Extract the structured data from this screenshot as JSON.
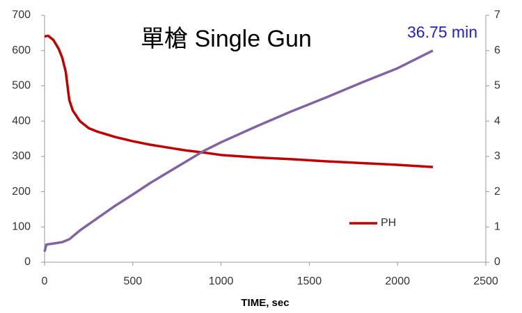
{
  "chart_data": {
    "type": "line",
    "title": "單槍 Single Gun",
    "annotation": "36.75 min",
    "annotation_color": "#1f1fcc",
    "xlabel": "TIME, sec",
    "xlim": [
      0,
      2500
    ],
    "xticks": [
      0,
      500,
      1000,
      1500,
      2000,
      2500
    ],
    "ylim": [
      0,
      700
    ],
    "yticks": [
      0,
      100,
      200,
      300,
      400,
      500,
      600,
      700
    ],
    "y2lim": [
      0,
      7
    ],
    "y2ticks": [
      0,
      1,
      2,
      3,
      4,
      5,
      6,
      7
    ],
    "grid": false,
    "legend": "lower right",
    "series": [
      {
        "name": "PH",
        "color": "#c00000",
        "axis": "y2",
        "x": [
          0,
          20,
          50,
          80,
          100,
          120,
          140,
          160,
          200,
          250,
          300,
          400,
          500,
          600,
          700,
          800,
          900,
          1000,
          1200,
          1400,
          1600,
          1800,
          2000,
          2200
        ],
        "values": [
          6.4,
          6.42,
          6.3,
          6.05,
          5.8,
          5.4,
          4.6,
          4.3,
          4.0,
          3.8,
          3.7,
          3.55,
          3.43,
          3.33,
          3.25,
          3.17,
          3.11,
          3.04,
          2.97,
          2.92,
          2.86,
          2.81,
          2.76,
          2.7
        ]
      },
      {
        "color": "#8064a2",
        "x": [
          0,
          10,
          50,
          100,
          140,
          200,
          300,
          400,
          500,
          600,
          700,
          800,
          900,
          1000,
          1200,
          1400,
          1600,
          1800,
          2000,
          2200
        ],
        "values": [
          30,
          50,
          53,
          57,
          65,
          90,
          125,
          160,
          192,
          225,
          255,
          285,
          315,
          340,
          385,
          428,
          468,
          510,
          550,
          600
        ]
      }
    ]
  }
}
